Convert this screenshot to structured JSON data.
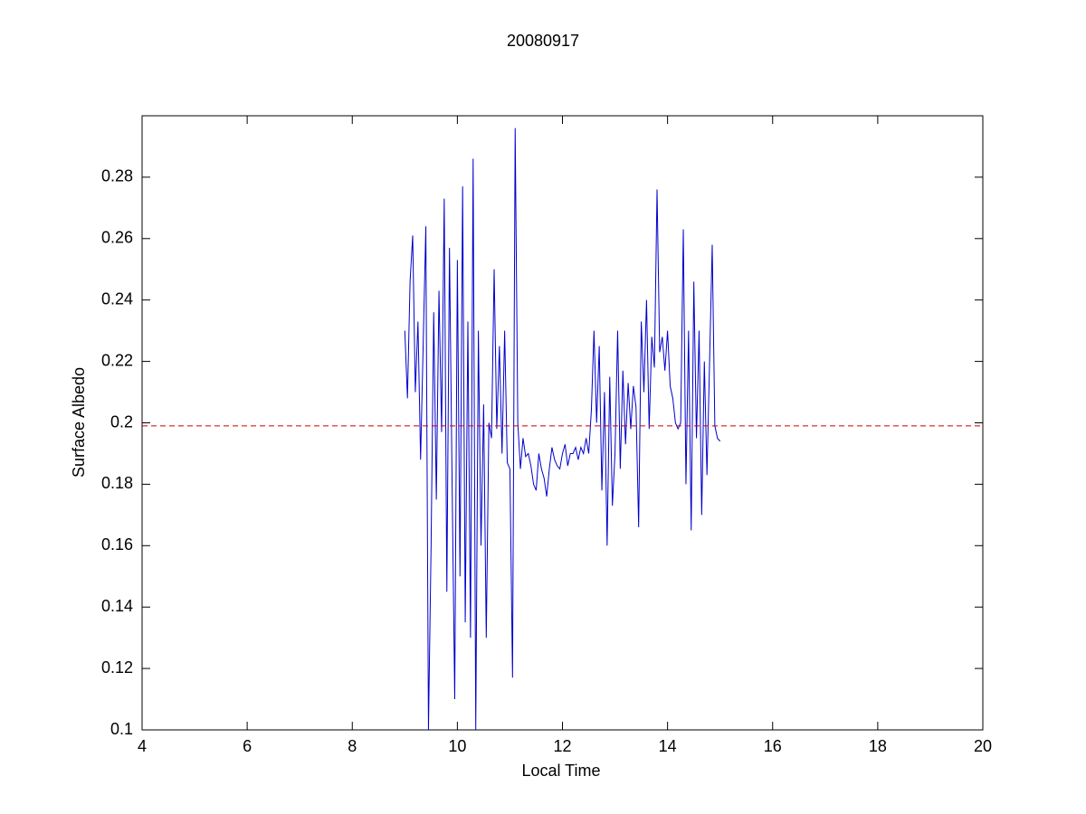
{
  "chart_data": {
    "type": "line",
    "title": "20080917",
    "xlabel": "Local Time",
    "ylabel": "Surface Albedo",
    "xlim": [
      4,
      20
    ],
    "xticks": [
      4,
      6,
      8,
      10,
      12,
      14,
      16,
      18,
      20
    ],
    "ylim": [
      0.1,
      0.3
    ],
    "yticks": [
      0.1,
      0.12,
      0.14,
      0.16,
      0.18,
      0.2,
      0.22,
      0.24,
      0.26,
      0.28
    ],
    "grid": false,
    "series": [
      {
        "color": "#0000cc",
        "dashed": false,
        "x": [
          9.0,
          9.05,
          9.1,
          9.15,
          9.2,
          9.25,
          9.3,
          9.35,
          9.4,
          9.45,
          9.5,
          9.55,
          9.6,
          9.65,
          9.7,
          9.75,
          9.8,
          9.85,
          9.9,
          9.95,
          10.0,
          10.05,
          10.1,
          10.15,
          10.2,
          10.25,
          10.3,
          10.35,
          10.4,
          10.45,
          10.5,
          10.55,
          10.6,
          10.65,
          10.7,
          10.75,
          10.8,
          10.85,
          10.9,
          10.95,
          11.0,
          11.05,
          11.1,
          11.15,
          11.2,
          11.25,
          11.3,
          11.35,
          11.4,
          11.45,
          11.5,
          11.55,
          11.6,
          11.65,
          11.7,
          11.75,
          11.8,
          11.85,
          11.9,
          11.95,
          12.0,
          12.05,
          12.1,
          12.15,
          12.2,
          12.25,
          12.3,
          12.35,
          12.4,
          12.45,
          12.5,
          12.55,
          12.6,
          12.65,
          12.7,
          12.75,
          12.8,
          12.85,
          12.9,
          12.95,
          13.0,
          13.05,
          13.1,
          13.15,
          13.2,
          13.25,
          13.3,
          13.35,
          13.4,
          13.45,
          13.5,
          13.55,
          13.6,
          13.65,
          13.7,
          13.75,
          13.8,
          13.85,
          13.9,
          13.95,
          14.0,
          14.05,
          14.1,
          14.15,
          14.2,
          14.25,
          14.3,
          14.35,
          14.4,
          14.45,
          14.5,
          14.55,
          14.6,
          14.65,
          14.7,
          14.75,
          14.8,
          14.85,
          14.9,
          14.95,
          15.0
        ],
        "values": [
          0.23,
          0.208,
          0.246,
          0.261,
          0.21,
          0.233,
          0.188,
          0.226,
          0.264,
          0.1,
          0.16,
          0.236,
          0.175,
          0.243,
          0.197,
          0.273,
          0.145,
          0.257,
          0.18,
          0.11,
          0.253,
          0.15,
          0.277,
          0.135,
          0.233,
          0.13,
          0.286,
          0.1,
          0.23,
          0.16,
          0.206,
          0.13,
          0.2,
          0.195,
          0.25,
          0.198,
          0.225,
          0.19,
          0.23,
          0.187,
          0.185,
          0.117,
          0.296,
          0.2,
          0.185,
          0.195,
          0.189,
          0.19,
          0.186,
          0.18,
          0.178,
          0.19,
          0.185,
          0.182,
          0.176,
          0.185,
          0.192,
          0.188,
          0.186,
          0.185,
          0.19,
          0.193,
          0.186,
          0.19,
          0.19,
          0.192,
          0.188,
          0.192,
          0.19,
          0.195,
          0.19,
          0.204,
          0.23,
          0.2,
          0.225,
          0.178,
          0.21,
          0.16,
          0.215,
          0.173,
          0.19,
          0.23,
          0.185,
          0.217,
          0.193,
          0.213,
          0.198,
          0.212,
          0.205,
          0.166,
          0.233,
          0.21,
          0.24,
          0.198,
          0.228,
          0.218,
          0.276,
          0.223,
          0.228,
          0.217,
          0.23,
          0.212,
          0.208,
          0.2,
          0.198,
          0.2,
          0.263,
          0.18,
          0.23,
          0.165,
          0.246,
          0.195,
          0.23,
          0.17,
          0.22,
          0.183,
          0.22,
          0.258,
          0.199,
          0.195,
          0.194
        ]
      },
      {
        "color": "#cc0000",
        "dashed": true,
        "x": [
          4,
          20
        ],
        "values": [
          0.199,
          0.199
        ]
      }
    ]
  }
}
